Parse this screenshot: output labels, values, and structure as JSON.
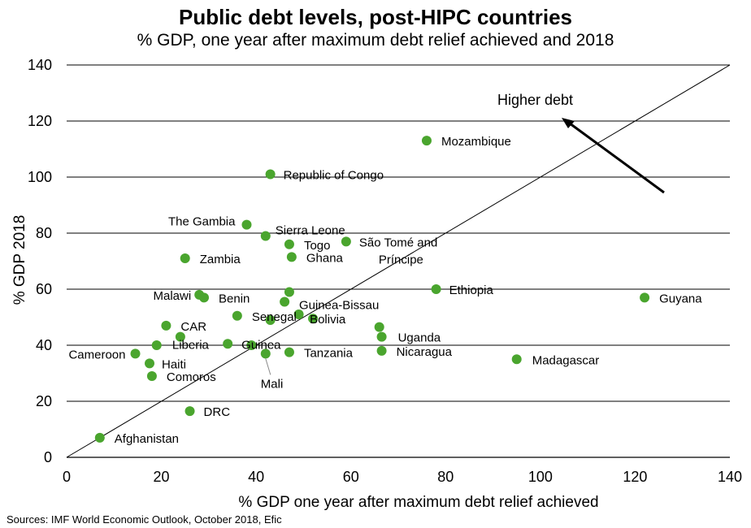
{
  "title": "Public debt levels, post-HIPC countries",
  "subtitle": "% GDP, one year after maximum debt relief achieved and 2018",
  "source": "Sources: IMF World Economic Outlook, October 2018, Efic",
  "annotation": "Higher debt",
  "colors": {
    "marker": "#4aa52e",
    "axis": "#000000",
    "grid": "#000000"
  },
  "chart_data": {
    "type": "scatter",
    "xlabel": "% GDP one year after maximum  debt relief achieved",
    "ylabel": "% GDP 2018",
    "xlim": [
      0,
      140
    ],
    "ylim": [
      0,
      140
    ],
    "xticks": [
      0,
      20,
      40,
      60,
      80,
      100,
      120,
      140
    ],
    "yticks": [
      0,
      20,
      40,
      60,
      80,
      100,
      120,
      140
    ],
    "gridlines": "horizontal",
    "reference_line": "y = x",
    "points": [
      {
        "label": "Afghanistan",
        "x": 7,
        "y": 7
      },
      {
        "label": "Mozambique",
        "x": 76,
        "y": 113
      },
      {
        "label": "Republic  of Congo",
        "x": 43,
        "y": 101
      },
      {
        "label": "The  Gambia",
        "x": 38,
        "y": 83
      },
      {
        "label": "Sierra Leone",
        "x": 42,
        "y": 79
      },
      {
        "label": "São Tomé  and Príncipe",
        "x": 59,
        "y": 77
      },
      {
        "label": "Togo",
        "x": 47,
        "y": 76
      },
      {
        "label": "Ghana",
        "x": 47.5,
        "y": 71.5
      },
      {
        "label": "Zambia",
        "x": 25,
        "y": 71
      },
      {
        "label": "Malawi",
        "x": 28,
        "y": 58
      },
      {
        "label": "Benin",
        "x": 29,
        "y": 57
      },
      {
        "label": "Guinea-Bissau",
        "x": 47,
        "y": 59
      },
      {
        "label": "",
        "x": 46,
        "y": 55.5
      },
      {
        "label": "Ethiopia",
        "x": 78,
        "y": 60
      },
      {
        "label": "Guyana",
        "x": 122,
        "y": 57
      },
      {
        "label": "Senegal",
        "x": 36,
        "y": 50.5
      },
      {
        "label": "",
        "x": 43,
        "y": 49
      },
      {
        "label": "",
        "x": 49,
        "y": 51
      },
      {
        "label": "Bolivia",
        "x": 52,
        "y": 49.5
      },
      {
        "label": "CAR",
        "x": 21,
        "y": 47
      },
      {
        "label": "Liberia",
        "x": 24,
        "y": 43
      },
      {
        "label": "",
        "x": 66,
        "y": 46.5
      },
      {
        "label": "Uganda",
        "x": 66.5,
        "y": 43
      },
      {
        "label": "Guinea",
        "x": 34,
        "y": 40.5
      },
      {
        "label": "",
        "x": 39,
        "y": 40
      },
      {
        "label": "Mali",
        "x": 42,
        "y": 37
      },
      {
        "label": "Tanzania",
        "x": 47,
        "y": 37.5
      },
      {
        "label": "Nicaragua",
        "x": 66.5,
        "y": 38
      },
      {
        "label": "Madagascar",
        "x": 95,
        "y": 35
      },
      {
        "label": "Cameroon",
        "x": 14.5,
        "y": 37
      },
      {
        "label": "Haiti",
        "x": 17.5,
        "y": 33.5
      },
      {
        "label": "",
        "x": 19,
        "y": 40
      },
      {
        "label": "Comoros",
        "x": 18,
        "y": 29
      },
      {
        "label": "DRC",
        "x": 26,
        "y": 16.5
      }
    ]
  }
}
